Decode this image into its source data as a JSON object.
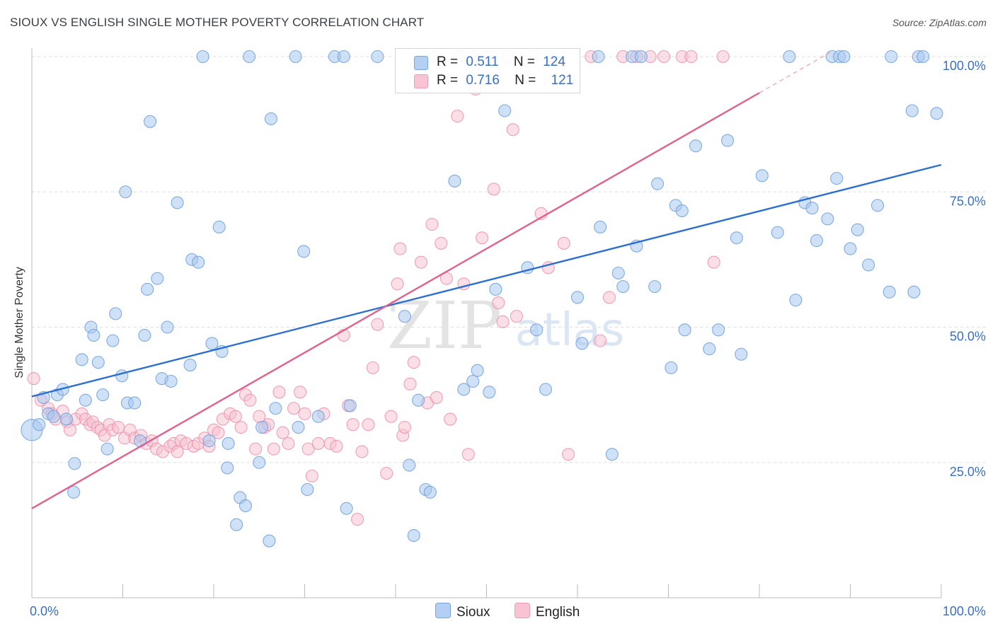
{
  "title": "SIOUX VS ENGLISH SINGLE MOTHER POVERTY CORRELATION CHART",
  "source": "Source: ZipAtlas.com",
  "watermark": {
    "zip": "ZIP",
    "atlas": "atlas"
  },
  "legend_top": {
    "rows": [
      {
        "r_label": "R =",
        "r_value": "0.511",
        "n_label": "N =",
        "n_value": "124"
      },
      {
        "r_label": "R =",
        "r_value": "0.716",
        "n_label": "N =",
        "n_value": "121"
      }
    ]
  },
  "legend_bottom": {
    "items": [
      "Sioux",
      "English"
    ]
  },
  "colors": {
    "sioux_fill": "#a8c8f0",
    "sioux_stroke": "#6d9fdc",
    "sioux_line": "#2d6fcf",
    "english_fill": "#f8c0d0",
    "english_stroke": "#ec90ab",
    "english_line": "#e0608e",
    "grid": "#dedede",
    "tick_text": "#3a6fc4"
  },
  "chart_data": {
    "type": "scatter",
    "title": "SIOUX VS ENGLISH SINGLE MOTHER POVERTY CORRELATION CHART",
    "xlabel": "",
    "ylabel": "Single Mother Poverty",
    "xlim": [
      0,
      100
    ],
    "ylim": [
      0,
      102
    ],
    "x_tick_labels": [
      "0.0%",
      "100.0%"
    ],
    "y_ticks": [
      25,
      50,
      75,
      100
    ],
    "y_tick_labels": [
      "25.0%",
      "50.0%",
      "75.0%",
      "100.0%"
    ],
    "grid": true,
    "legend_position": "top-center",
    "series": [
      {
        "name": "Sioux",
        "r": 0.511,
        "n": 124,
        "trend": {
          "x": [
            0,
            100
          ],
          "y": [
            37.2,
            80.0
          ]
        },
        "points": [
          [
            0.0,
            31.0
          ],
          [
            0.8,
            32.0
          ],
          [
            1.3,
            37.0
          ],
          [
            1.8,
            34.0
          ],
          [
            2.4,
            33.5
          ],
          [
            2.8,
            37.5
          ],
          [
            3.4,
            38.5
          ],
          [
            3.8,
            33.0
          ],
          [
            4.6,
            19.5
          ],
          [
            4.7,
            24.8
          ],
          [
            5.5,
            44.0
          ],
          [
            5.9,
            36.5
          ],
          [
            6.5,
            50.0
          ],
          [
            6.8,
            48.5
          ],
          [
            7.3,
            43.5
          ],
          [
            7.8,
            37.5
          ],
          [
            8.3,
            27.5
          ],
          [
            8.9,
            47.5
          ],
          [
            9.2,
            52.5
          ],
          [
            9.9,
            41.0
          ],
          [
            10.3,
            75.0
          ],
          [
            10.5,
            36.0
          ],
          [
            11.3,
            36.0
          ],
          [
            11.9,
            29.0
          ],
          [
            12.4,
            48.5
          ],
          [
            12.7,
            57.0
          ],
          [
            13.0,
            88.0
          ],
          [
            13.8,
            59.0
          ],
          [
            14.3,
            40.5
          ],
          [
            14.9,
            50.0
          ],
          [
            15.3,
            40.0
          ],
          [
            16.0,
            73.0
          ],
          [
            17.4,
            43.0
          ],
          [
            17.6,
            62.5
          ],
          [
            18.3,
            62.0
          ],
          [
            18.8,
            100.0
          ],
          [
            19.5,
            29.0
          ],
          [
            19.8,
            47.0
          ],
          [
            20.6,
            68.5
          ],
          [
            20.9,
            45.5
          ],
          [
            21.5,
            24.0
          ],
          [
            21.6,
            28.5
          ],
          [
            22.5,
            13.5
          ],
          [
            22.9,
            18.5
          ],
          [
            23.5,
            17.0
          ],
          [
            23.9,
            100.0
          ],
          [
            25.0,
            25.0
          ],
          [
            25.3,
            31.5
          ],
          [
            26.1,
            10.5
          ],
          [
            26.3,
            88.5
          ],
          [
            26.8,
            35.0
          ],
          [
            29.0,
            100.0
          ],
          [
            29.3,
            31.5
          ],
          [
            29.9,
            64.0
          ],
          [
            30.3,
            20.0
          ],
          [
            31.5,
            33.5
          ],
          [
            33.3,
            100.0
          ],
          [
            34.3,
            100.0
          ],
          [
            34.6,
            16.5
          ],
          [
            35.0,
            35.5
          ],
          [
            38.0,
            100.0
          ],
          [
            41.0,
            52.0
          ],
          [
            41.5,
            24.5
          ],
          [
            42.0,
            11.5
          ],
          [
            42.5,
            36.5
          ],
          [
            43.3,
            20.0
          ],
          [
            43.8,
            19.5
          ],
          [
            44.0,
            100.0
          ],
          [
            46.5,
            77.0
          ],
          [
            47.0,
            100.0
          ],
          [
            47.5,
            38.5
          ],
          [
            48.5,
            40.0
          ],
          [
            49.0,
            42.0
          ],
          [
            50.3,
            38.0
          ],
          [
            50.5,
            100.0
          ],
          [
            51.0,
            57.0
          ],
          [
            52.0,
            90.0
          ],
          [
            54.5,
            61.0
          ],
          [
            55.5,
            49.5
          ],
          [
            56.5,
            38.5
          ],
          [
            57.0,
            100.0
          ],
          [
            60.0,
            55.5
          ],
          [
            60.5,
            47.0
          ],
          [
            62.3,
            100.0
          ],
          [
            62.5,
            68.5
          ],
          [
            63.8,
            26.5
          ],
          [
            64.5,
            60.0
          ],
          [
            65.0,
            57.5
          ],
          [
            66.0,
            100.0
          ],
          [
            66.5,
            65.0
          ],
          [
            67.0,
            100.0
          ],
          [
            68.5,
            57.5
          ],
          [
            68.8,
            76.5
          ],
          [
            70.3,
            42.5
          ],
          [
            70.8,
            72.5
          ],
          [
            71.5,
            71.5
          ],
          [
            71.8,
            49.5
          ],
          [
            73.0,
            83.5
          ],
          [
            74.5,
            46.0
          ],
          [
            75.5,
            49.5
          ],
          [
            76.5,
            84.5
          ],
          [
            77.5,
            66.5
          ],
          [
            78.0,
            45.0
          ],
          [
            80.3,
            78.0
          ],
          [
            82.0,
            67.5
          ],
          [
            83.3,
            100.0
          ],
          [
            84.0,
            55.0
          ],
          [
            85.0,
            73.0
          ],
          [
            85.8,
            72.0
          ],
          [
            86.3,
            66.0
          ],
          [
            87.5,
            70.0
          ],
          [
            88.0,
            100.0
          ],
          [
            88.5,
            77.5
          ],
          [
            88.8,
            100.0
          ],
          [
            89.3,
            100.0
          ],
          [
            90.0,
            64.5
          ],
          [
            90.8,
            68.0
          ],
          [
            92.0,
            61.5
          ],
          [
            93.0,
            72.5
          ],
          [
            94.3,
            56.5
          ],
          [
            94.5,
            100.0
          ],
          [
            96.8,
            90.0
          ],
          [
            97.0,
            56.5
          ],
          [
            97.5,
            100.0
          ],
          [
            98.0,
            100.0
          ],
          [
            99.5,
            89.5
          ]
        ]
      },
      {
        "name": "English",
        "r": 0.716,
        "n": 121,
        "trend": {
          "x": [
            0,
            80
          ],
          "y": [
            16.5,
            93.3
          ],
          "extrapolated": {
            "x": [
              80,
              100
            ],
            "y": [
              93.3,
              112.5
            ]
          }
        },
        "points": [
          [
            0.2,
            40.5
          ],
          [
            1.0,
            36.5
          ],
          [
            1.8,
            35.0
          ],
          [
            2.2,
            34.0
          ],
          [
            2.6,
            33.0
          ],
          [
            3.4,
            34.5
          ],
          [
            3.9,
            32.5
          ],
          [
            4.2,
            31.0
          ],
          [
            4.8,
            33.0
          ],
          [
            5.5,
            34.0
          ],
          [
            5.9,
            33.0
          ],
          [
            6.4,
            32.0
          ],
          [
            6.7,
            32.5
          ],
          [
            7.2,
            31.5
          ],
          [
            7.6,
            31.0
          ],
          [
            8.0,
            30.0
          ],
          [
            8.5,
            32.0
          ],
          [
            8.9,
            31.0
          ],
          [
            9.5,
            31.5
          ],
          [
            10.2,
            29.5
          ],
          [
            10.8,
            31.0
          ],
          [
            11.3,
            29.5
          ],
          [
            12.0,
            30.0
          ],
          [
            12.6,
            28.5
          ],
          [
            13.2,
            29.0
          ],
          [
            13.7,
            27.5
          ],
          [
            14.4,
            27.0
          ],
          [
            15.2,
            28.0
          ],
          [
            15.6,
            28.5
          ],
          [
            16.0,
            27.0
          ],
          [
            16.4,
            29.0
          ],
          [
            17.0,
            28.5
          ],
          [
            17.8,
            28.0
          ],
          [
            18.3,
            28.5
          ],
          [
            19.0,
            29.5
          ],
          [
            19.5,
            28.0
          ],
          [
            20.0,
            31.0
          ],
          [
            20.5,
            30.5
          ],
          [
            21.0,
            33.0
          ],
          [
            21.8,
            34.0
          ],
          [
            22.4,
            33.5
          ],
          [
            23.0,
            31.5
          ],
          [
            23.5,
            37.5
          ],
          [
            24.0,
            36.5
          ],
          [
            24.6,
            27.5
          ],
          [
            25.0,
            33.5
          ],
          [
            25.6,
            31.5
          ],
          [
            26.0,
            32.0
          ],
          [
            26.6,
            27.5
          ],
          [
            27.2,
            38.0
          ],
          [
            27.6,
            30.5
          ],
          [
            28.2,
            28.5
          ],
          [
            28.8,
            35.0
          ],
          [
            29.5,
            38.0
          ],
          [
            30.0,
            34.0
          ],
          [
            30.4,
            27.5
          ],
          [
            30.8,
            22.5
          ],
          [
            31.5,
            28.5
          ],
          [
            32.1,
            34.0
          ],
          [
            32.8,
            28.5
          ],
          [
            33.5,
            28.0
          ],
          [
            34.3,
            48.5
          ],
          [
            34.8,
            35.5
          ],
          [
            35.3,
            32.0
          ],
          [
            35.8,
            14.5
          ],
          [
            36.3,
            27.0
          ],
          [
            37.0,
            32.0
          ],
          [
            37.5,
            42.5
          ],
          [
            38.0,
            50.5
          ],
          [
            39.0,
            23.0
          ],
          [
            39.5,
            33.5
          ],
          [
            40.2,
            58.0
          ],
          [
            40.5,
            64.5
          ],
          [
            40.8,
            30.0
          ],
          [
            41.0,
            31.5
          ],
          [
            41.6,
            39.5
          ],
          [
            42.0,
            43.5
          ],
          [
            42.8,
            62.0
          ],
          [
            43.5,
            36.0
          ],
          [
            44.0,
            69.0
          ],
          [
            44.5,
            37.0
          ],
          [
            45.0,
            65.5
          ],
          [
            45.6,
            59.0
          ],
          [
            46.0,
            33.0
          ],
          [
            46.8,
            89.0
          ],
          [
            47.5,
            58.0
          ],
          [
            48.0,
            26.5
          ],
          [
            48.5,
            100.0
          ],
          [
            48.8,
            94.0
          ],
          [
            49.5,
            66.5
          ],
          [
            50.0,
            100.0
          ],
          [
            50.8,
            75.5
          ],
          [
            51.3,
            54.5
          ],
          [
            51.8,
            51.0
          ],
          [
            52.3,
            100.0
          ],
          [
            52.9,
            86.5
          ],
          [
            53.3,
            52.0
          ],
          [
            54.0,
            97.5
          ],
          [
            55.3,
            100.0
          ],
          [
            56.0,
            71.0
          ],
          [
            56.8,
            61.0
          ],
          [
            58.5,
            65.5
          ],
          [
            59.0,
            26.5
          ],
          [
            61.5,
            100.0
          ],
          [
            62.5,
            47.5
          ],
          [
            63.5,
            55.5
          ],
          [
            65.0,
            100.0
          ],
          [
            66.5,
            100.0
          ],
          [
            68.0,
            100.0
          ],
          [
            69.5,
            100.0
          ],
          [
            71.5,
            100.0
          ],
          [
            72.5,
            100.0
          ],
          [
            75.0,
            62.0
          ],
          [
            76.0,
            100.0
          ]
        ]
      }
    ]
  }
}
